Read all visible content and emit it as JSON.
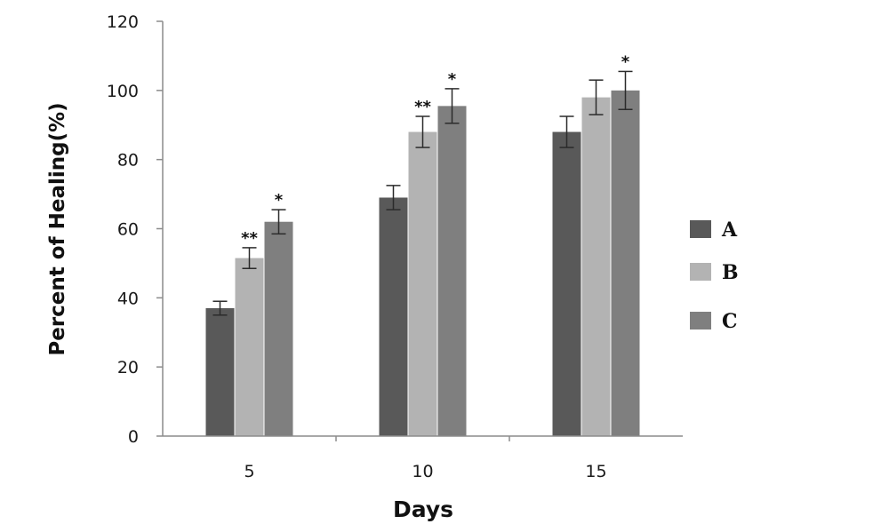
{
  "chart_data": {
    "type": "bar",
    "xlabel": "Days",
    "ylabel": "Percent of Healing(%)",
    "categories": [
      "5",
      "10",
      "15"
    ],
    "ylim": [
      0,
      120
    ],
    "yticks": [
      0,
      20,
      40,
      60,
      80,
      100,
      120
    ],
    "grid": false,
    "legend_position": "right",
    "series": [
      {
        "name": "A",
        "color": "#595959",
        "values": [
          37,
          69,
          88
        ],
        "errors": [
          2,
          3.5,
          4.5
        ],
        "marks": [
          "",
          "",
          ""
        ]
      },
      {
        "name": "B",
        "color": "#b3b3b3",
        "values": [
          51.5,
          88,
          98
        ],
        "errors": [
          3,
          4.5,
          5
        ],
        "marks": [
          "**",
          "**",
          ""
        ]
      },
      {
        "name": "C",
        "color": "#7f7f7f",
        "values": [
          62,
          95.5,
          100
        ],
        "errors": [
          3.5,
          5,
          5.5
        ],
        "marks": [
          "*",
          "*",
          "*"
        ]
      }
    ]
  }
}
